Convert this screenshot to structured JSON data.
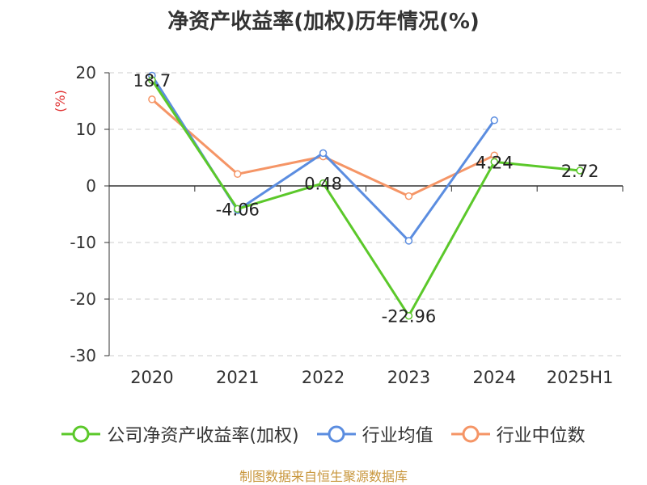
{
  "title": "净资产收益率(加权)历年情况(%)",
  "source": "制图数据来自恒生聚源数据库",
  "legend": [
    {
      "label": "公司净资产收益率(加权)",
      "color": "#5bc82a"
    },
    {
      "label": "行业均值",
      "color": "#5b8de0"
    },
    {
      "label": "行业中位数",
      "color": "#f59566"
    }
  ],
  "chart_data": {
    "type": "line",
    "title": "净资产收益率(加权)历年情况(%)",
    "xlabel": "",
    "ylabel": "(%)",
    "ylim": [
      -30,
      20
    ],
    "yticks": [
      20,
      10,
      0,
      -10,
      -20,
      -30
    ],
    "grid": true,
    "legend_position": "bottom",
    "categories": [
      "2020",
      "2021",
      "2022",
      "2023",
      "2024",
      "2025H1"
    ],
    "series": [
      {
        "name": "公司净资产收益率(加权)",
        "color": "#5bc82a",
        "values": [
          18.7,
          -4.06,
          0.48,
          -22.96,
          4.24,
          2.72
        ],
        "labels": [
          "18.7",
          "-4.06",
          "0.48",
          "-22.96",
          "4.24",
          "2.72"
        ]
      },
      {
        "name": "行业均值",
        "color": "#5b8de0",
        "values": [
          19.5,
          -4.3,
          5.8,
          -9.7,
          11.6,
          null
        ]
      },
      {
        "name": "行业中位数",
        "color": "#f59566",
        "values": [
          15.3,
          2.1,
          5.2,
          -1.8,
          5.4,
          null
        ]
      }
    ]
  }
}
